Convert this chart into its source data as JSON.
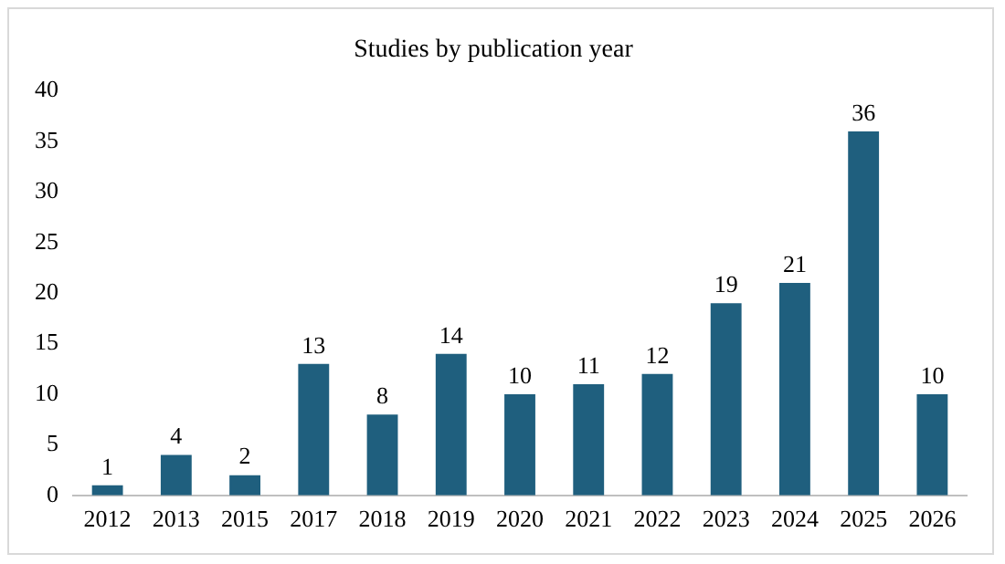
{
  "chart_data": {
    "type": "bar",
    "title": "Studies by publication year",
    "categories": [
      "2012",
      "2013",
      "2015",
      "2017",
      "2018",
      "2019",
      "2020",
      "2021",
      "2022",
      "2023",
      "2024",
      "2025",
      "2026"
    ],
    "values": [
      1,
      4,
      2,
      13,
      8,
      14,
      10,
      11,
      12,
      19,
      21,
      36,
      10
    ],
    "color": "#1f5f7e",
    "ylim": [
      0,
      40
    ],
    "yticks": [
      0,
      5,
      10,
      15,
      20,
      25,
      30,
      35,
      40
    ],
    "grid": false,
    "legend": false,
    "data_labels": true
  }
}
